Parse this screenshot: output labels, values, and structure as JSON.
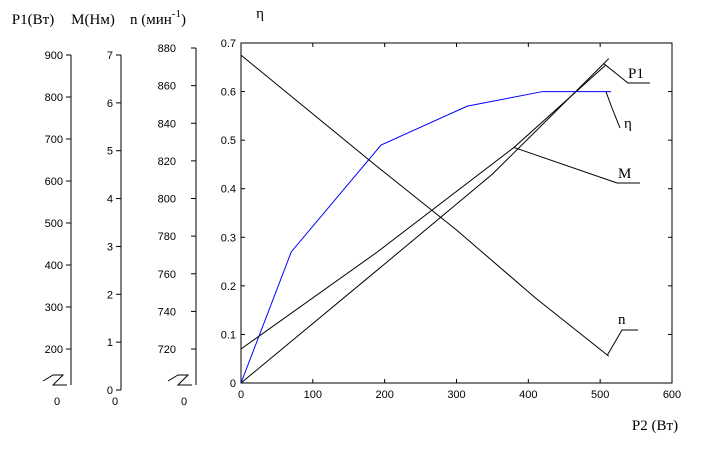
{
  "chart_data": {
    "type": "line",
    "x_axis": {
      "label": "P2 (Вт)",
      "range": [
        0,
        600
      ],
      "ticks": [
        "0",
        "100",
        "200",
        "300",
        "400",
        "500",
        "600"
      ]
    },
    "eta_axis": {
      "label": "η",
      "range": [
        0,
        0.7
      ],
      "ticks": [
        "0",
        "0.1",
        "0.2",
        "0.3",
        "0.4",
        "0.5",
        "0.6",
        "0.7"
      ]
    },
    "extra_axes": [
      {
        "key": "P1",
        "label": "P1(Вт)",
        "range": [
          150,
          900
        ],
        "ticks": [
          "200",
          "300",
          "400",
          "500",
          "600",
          "700",
          "800",
          "900"
        ],
        "zero_label": "0"
      },
      {
        "key": "M",
        "label": "M(Нм)",
        "range": [
          0,
          7
        ],
        "ticks": [
          "0",
          "1",
          "2",
          "3",
          "4",
          "5",
          "6",
          "7"
        ],
        "zero_label": "0"
      },
      {
        "key": "n",
        "label_main": "n (мин",
        "label_sup": "-1",
        "label_close": ")",
        "range": [
          697.5,
          880
        ],
        "ticks": [
          "720",
          "740",
          "760",
          "780",
          "800",
          "820",
          "840",
          "860",
          "880"
        ],
        "zero_label": "0"
      }
    ],
    "series": [
      {
        "name": "P1",
        "color": "#000000",
        "x": [
          0,
          200,
          350,
          500,
          512
        ],
        "y_eta": [
          0.0,
          0.245,
          0.43,
          0.65,
          0.668
        ],
        "label_anchor_x": 505
      },
      {
        "name": "η",
        "color": "#0000ff",
        "x": [
          0,
          70,
          195,
          315,
          420,
          515
        ],
        "y_eta": [
          0.0,
          0.27,
          0.49,
          0.57,
          0.6,
          0.6
        ],
        "label_anchor_x": 508
      },
      {
        "name": "M",
        "color": "#000000",
        "x": [
          0,
          190,
          380,
          508
        ],
        "y_eta": [
          0.07,
          0.27,
          0.485,
          0.655
        ],
        "label_anchor_x": 380
      },
      {
        "name": "n",
        "color": "#000000",
        "x": [
          0,
          95,
          190,
          300,
          410,
          512
        ],
        "y_eta": [
          0.675,
          0.56,
          0.445,
          0.315,
          0.175,
          0.055
        ],
        "label_anchor_x": 510
      }
    ],
    "grid": false,
    "legend": "inline labels"
  }
}
